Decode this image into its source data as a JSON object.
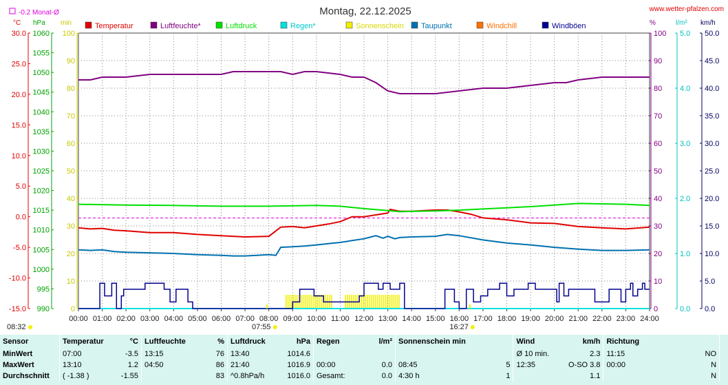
{
  "chart_data": {
    "type": "line",
    "title": "Montag, 22.12.2025",
    "source": "www.wetter-pfalzen.com",
    "monthly_avg_label": "-0.2 Monat-Ø",
    "axis_units": {
      "temp": "°C",
      "hpa": "hPa",
      "min": "min",
      "pct": "%",
      "lm2": "l/m²",
      "kmh": "km/h"
    },
    "axes": {
      "temp": {
        "range": [
          -15,
          30
        ],
        "ticks": [
          "30.0",
          "25.0",
          "20.0",
          "15.0",
          "10.0",
          "5.0",
          "0.0",
          "-5.0",
          "-10.0",
          "-15.0"
        ],
        "color": "#e00000"
      },
      "hpa": {
        "range": [
          990,
          1060
        ],
        "ticks": [
          "1060",
          "1055",
          "1050",
          "1045",
          "1040",
          "1035",
          "1030",
          "1025",
          "1020",
          "1015",
          "1010",
          "1005",
          "1000",
          "995",
          "990"
        ],
        "color": "#00a000"
      },
      "min": {
        "range": [
          0,
          100
        ],
        "ticks": [
          "100",
          "90",
          "80",
          "70",
          "60",
          "50",
          "40",
          "30",
          "20",
          "10",
          "0"
        ],
        "color": "#c8c800"
      },
      "pct": {
        "range": [
          0,
          100
        ],
        "ticks": [
          "100",
          "90",
          "80",
          "70",
          "60",
          "50",
          "40",
          "30",
          "20",
          "10",
          "0"
        ],
        "color": "#800080"
      },
      "lm2": {
        "range": [
          0,
          5
        ],
        "ticks": [
          "5.0",
          "4.0",
          "3.0",
          "2.0",
          "1.0",
          "0.0"
        ],
        "color": "#00c0c0"
      },
      "kmh": {
        "range": [
          0,
          50
        ],
        "ticks": [
          "50.0",
          "45.0",
          "40.0",
          "35.0",
          "30.0",
          "25.0",
          "20.0",
          "15.0",
          "10.0",
          "5.0",
          "0.0"
        ],
        "color": "#000060"
      }
    },
    "x_ticks": [
      "00:00",
      "01:00",
      "02:00",
      "03:00",
      "04:00",
      "05:00",
      "06:00",
      "07:00",
      "08:00",
      "09:00",
      "10:00",
      "11:00",
      "12:00",
      "13:00",
      "14:00",
      "15:00",
      "16:00",
      "17:00",
      "18:00",
      "19:00",
      "20:00",
      "21:00",
      "22:00",
      "23:00",
      "24:00"
    ],
    "sunrise": "07:55",
    "sunset": "16:27",
    "time_left": "08:32",
    "legend": [
      {
        "name": "Temperatur",
        "color": "#e00000"
      },
      {
        "name": "Luftfeuchte*",
        "color": "#800080"
      },
      {
        "name": "Luftdruck",
        "color": "#00e000"
      },
      {
        "name": "Regen*",
        "color": "#00e0e0"
      },
      {
        "name": "Sonnenschein",
        "color": "#f0f000"
      },
      {
        "name": "Taupunkt",
        "color": "#0070b0"
      },
      {
        "name": "Windchill",
        "color": "#ff7000"
      },
      {
        "name": "Windböen",
        "color": "#000090"
      }
    ],
    "series": [
      {
        "name": "Temperatur",
        "axis": "temp",
        "color": "#e00000",
        "x": [
          0,
          0.5,
          1,
          1.5,
          2,
          3,
          4,
          5,
          6,
          7,
          8,
          8.5,
          9,
          9.5,
          10,
          10.5,
          11,
          11.5,
          12,
          12.5,
          13,
          13.1,
          13.5,
          14,
          15,
          15.5,
          16,
          16.5,
          17,
          18,
          19,
          20,
          21,
          22,
          23,
          24
        ],
        "y": [
          -1.8,
          -2.0,
          -1.9,
          -2.2,
          -2.3,
          -2.6,
          -2.6,
          -2.9,
          -3.1,
          -3.3,
          -3.2,
          -1.7,
          -1.6,
          -1.8,
          -1.5,
          -1.2,
          -0.8,
          0.0,
          0.0,
          0.3,
          0.6,
          1.2,
          0.9,
          0.9,
          1.1,
          1.1,
          0.8,
          0.4,
          -0.2,
          -0.5,
          -1.0,
          -1.1,
          -1.6,
          -1.8,
          -2.0,
          -1.7
        ]
      },
      {
        "name": "Luftfeuchte*",
        "axis": "pct",
        "color": "#800080",
        "x": [
          0,
          0.5,
          1,
          2,
          3,
          4,
          5,
          6,
          6.5,
          7,
          8,
          8.5,
          9,
          9.5,
          10,
          11,
          11.5,
          12,
          12.5,
          13,
          13.5,
          14,
          15,
          16,
          17,
          17.5,
          18,
          19,
          20,
          20.5,
          21,
          22,
          23,
          24
        ],
        "y": [
          83,
          83,
          84,
          84,
          85,
          85,
          85,
          85,
          86,
          86,
          86,
          86,
          85,
          86,
          86,
          85,
          84,
          84,
          82,
          79,
          78,
          78,
          78,
          79,
          80,
          80,
          80,
          81,
          82,
          82,
          83,
          84,
          84,
          84
        ]
      },
      {
        "name": "Luftdruck",
        "axis": "hpa",
        "color": "#00e000",
        "x": [
          0,
          2,
          4,
          6,
          8,
          10,
          11,
          12,
          13,
          13.5,
          14,
          15,
          16,
          17,
          18,
          19,
          20,
          21,
          22,
          23,
          24
        ],
        "y": [
          1016.5,
          1016.3,
          1016.2,
          1016.0,
          1016.0,
          1016.2,
          1016.0,
          1015.4,
          1014.9,
          1014.6,
          1014.7,
          1014.8,
          1015.0,
          1015.3,
          1015.6,
          1015.9,
          1016.3,
          1016.7,
          1016.6,
          1016.5,
          1016.2
        ]
      },
      {
        "name": "Regen*",
        "axis": "lm2",
        "color": "#00e0e0",
        "x": [
          0,
          24
        ],
        "y": [
          0.0,
          0.0
        ]
      },
      {
        "name": "Taupunkt",
        "axis": "temp",
        "color": "#0070b0",
        "x": [
          0,
          0.5,
          1,
          1.5,
          2,
          3,
          4,
          5,
          6,
          6.5,
          7,
          7.5,
          8,
          8.3,
          8.5,
          9,
          9.5,
          10,
          10.5,
          11,
          11.5,
          12,
          12.2,
          12.5,
          12.8,
          13,
          13.3,
          13.5,
          14,
          15,
          15.5,
          16,
          17,
          18,
          19,
          20,
          21,
          22,
          23,
          24
        ],
        "y": [
          -5.4,
          -5.5,
          -5.4,
          -5.7,
          -5.8,
          -5.9,
          -6.0,
          -6.2,
          -6.3,
          -6.4,
          -6.4,
          -6.3,
          -6.2,
          -6.3,
          -5.0,
          -4.9,
          -4.8,
          -4.6,
          -4.4,
          -4.2,
          -3.9,
          -3.6,
          -3.4,
          -3.1,
          -3.5,
          -3.2,
          -3.6,
          -3.4,
          -3.3,
          -3.2,
          -2.9,
          -3.1,
          -3.8,
          -4.3,
          -4.6,
          -5.0,
          -5.3,
          -5.5,
          -5.5,
          -5.4
        ]
      },
      {
        "name": "Windböen",
        "axis": "kmh",
        "color": "#000090",
        "step": true,
        "x": [
          0,
          0.75,
          0.9,
          1.1,
          1.4,
          1.6,
          1.8,
          1.9,
          2.6,
          2.8,
          3.6,
          3.85,
          4.1,
          4.5,
          4.6,
          4.8,
          5.0,
          8.8,
          9.0,
          9.3,
          9.9,
          10.3,
          11.5,
          11.8,
          12.0,
          12.6,
          12.8,
          13.1,
          13.5,
          13.7,
          14.0,
          14.6,
          15.1,
          15.4,
          15.8,
          16.0,
          16.3,
          16.6,
          16.9,
          17.2,
          17.7,
          18.0,
          18.3,
          18.6,
          18.9,
          19.2,
          19.5,
          19.8,
          20.1,
          20.2,
          20.4,
          20.6,
          21.1,
          21.4,
          21.7,
          22.3,
          22.8,
          23.0,
          23.2,
          23.3,
          23.5,
          23.7,
          23.8,
          24
        ],
        "y": [
          0,
          0,
          4.6,
          2.3,
          4.6,
          0,
          2.3,
          3.5,
          3.5,
          4.6,
          3.5,
          1.2,
          3.5,
          3.5,
          1.2,
          0,
          0,
          0,
          1.2,
          3.5,
          2.3,
          1.2,
          1.2,
          2.3,
          4.6,
          3.5,
          4.6,
          3.5,
          4.6,
          0,
          0,
          0,
          0,
          3.5,
          1.2,
          0,
          3.5,
          1.2,
          2.3,
          3.5,
          4.6,
          2.3,
          3.5,
          3.5,
          4.6,
          3.5,
          3.5,
          3.5,
          1.2,
          4.6,
          2.3,
          3.5,
          3.5,
          3.5,
          1.2,
          3.5,
          1.2,
          3.5,
          4.6,
          2.3,
          3.5,
          4.6,
          3.5,
          3.5
        ]
      },
      {
        "name": "Sonnenschein",
        "axis": "min",
        "color": "#f0f000",
        "type": "bar",
        "bars": [
          [
            8.7,
            10.7,
            5
          ],
          [
            11.2,
            13.5,
            5
          ]
        ]
      }
    ],
    "monthly_avg_temp": -0.2
  },
  "stats": {
    "headers": [
      "Sensor",
      "Temperatur",
      "°C",
      "Luftfeuchte",
      "%",
      "Luftdruck",
      "hPa",
      "Regen",
      "l/m²",
      "Sonnenschein min",
      "Wind",
      "km/h",
      "Richtung"
    ],
    "rows": [
      {
        "label": "MinWert",
        "t_time": "07:00",
        "t_val": "-3.5",
        "h_time": "13:15",
        "h_val": "76",
        "p_time": "13:40",
        "p_val": "1014.6",
        "r_time": "",
        "r_val": "",
        "s_time": "",
        "s_val": "",
        "w_time": "Ø 10 min.",
        "w_val": "2.3",
        "d_time": "11:15",
        "d_val": "NO"
      },
      {
        "label": "MaxWert",
        "t_time": "13:10",
        "t_val": "1.2",
        "h_time": "04:50",
        "h_val": "86",
        "p_time": "21:40",
        "p_val": "1016.9",
        "r_time": "00:00",
        "r_val": "0.0",
        "s_time": "08:45",
        "s_val": "5",
        "w_time": "12:35",
        "w_val": "O-SO 3.8",
        "d_time": "00:00",
        "d_val": "N"
      },
      {
        "label": "Durchschnitt",
        "t_time": "( -1.38 )",
        "t_val": "-1.55",
        "h_time": "",
        "h_val": "83",
        "p_time": "^0.8hPa/h",
        "p_val": "1016.0",
        "r_time": "Gesamt:",
        "r_val": "0.0",
        "s_time": "4:30 h",
        "s_val": "1",
        "w_time": "",
        "w_val": "1.1",
        "d_time": "",
        "d_val": "N"
      }
    ]
  }
}
